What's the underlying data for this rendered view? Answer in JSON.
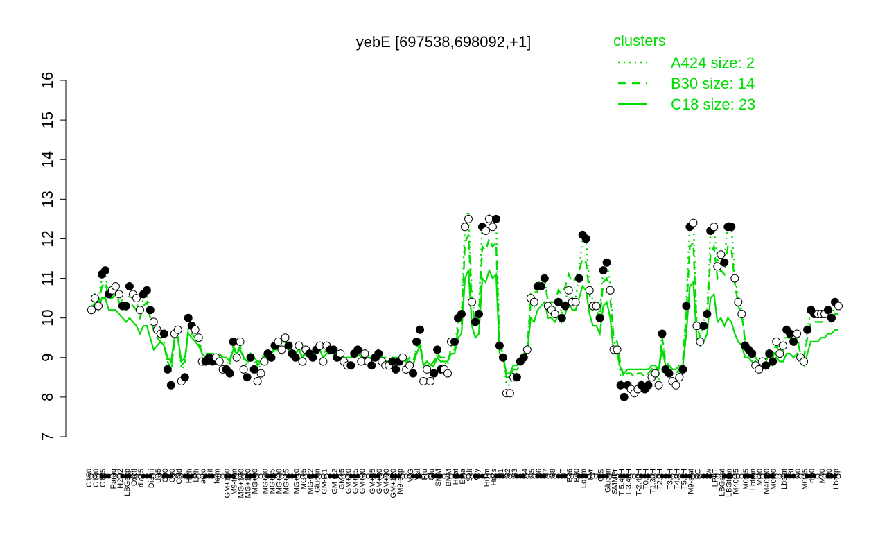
{
  "chart_data": {
    "type": "line",
    "title": "yebE [697538,698092,+1]",
    "xlabel": "",
    "ylabel": "",
    "ylim": [
      7,
      16
    ],
    "yticks": [
      7,
      8,
      9,
      10,
      11,
      12,
      13,
      14,
      15,
      16
    ],
    "grid": false,
    "legend": {
      "title": "clusters",
      "placement": "top-right",
      "color": "#00dd00",
      "entries": [
        {
          "label": "A424 size: 2",
          "style": "dotted"
        },
        {
          "label": "B30 size: 14",
          "style": "dashed"
        },
        {
          "label": "C18 size: 23",
          "style": "solid"
        }
      ]
    },
    "colors": {
      "lines": "#00dd00",
      "points": "#000000",
      "axes": "#000000"
    },
    "x_tick_labels": [
      "G150",
      "G180",
      "G135",
      "Paraq",
      "H2O2",
      "LBGexp",
      "Oxctl",
      "dia15",
      "Diami",
      "dia5",
      "C90",
      "C30",
      "Cold",
      "HPh",
      "LPh",
      "aero",
      "nit",
      "ferm",
      "GM+150",
      "M9-tran",
      "MG+150",
      "MG+120",
      "MG+90",
      "MG+60",
      "MG+45",
      "MG+30",
      "MG+15",
      "MG+10",
      "MG+5",
      "MG-0.2",
      "Glucon",
      "GM-0.1",
      "GM-0.2",
      "GM+5",
      "GM+10",
      "GM+15",
      "GM+30",
      "GM+45",
      "GM+60",
      "GM+90",
      "GM+120",
      "M9-exp",
      "M/G",
      "Mal",
      "Fru",
      "Glu",
      "SMM",
      "BMM",
      "Heat",
      "Etha",
      "Salt",
      "Gly",
      "HiTm",
      "HiOs",
      "S1",
      "S2",
      "S3",
      "S4",
      "S5",
      "S6",
      "S7",
      "S8",
      "BT",
      "B36",
      "B60",
      "LoTm",
      "Pyr",
      "G/S",
      "Glucon",
      "SMMPr",
      "T-5.40H",
      "T-3.40H",
      "T-2.40H",
      "T0.0H",
      "T1.30H",
      "T2.0H",
      "T3.0H",
      "T4.0H",
      "T5.0H",
      "M9-stat",
      "BC",
      "Sw",
      "LPhT",
      "LBGstat",
      "LBGtran",
      "M40t45",
      "M0t45",
      "Lbtran",
      "M0t0",
      "M40t90",
      "M0t90",
      "Lbstat",
      "BI",
      "S0",
      "M0t45",
      "dia0",
      "M40",
      "M0",
      "Lbexp"
    ],
    "series": [
      {
        "marker": "point",
        "values": [
          10.2,
          10.5,
          10.3,
          11.1,
          11.2,
          10.6,
          10.7,
          10.8,
          10.6,
          10.3,
          10.3,
          10.8,
          10.6,
          10.5,
          10.2,
          10.6,
          10.7,
          10.2,
          9.9,
          9.7,
          9.6,
          9.6,
          8.7,
          8.3,
          9.6,
          9.7,
          8.4,
          8.5,
          10.0,
          9.8,
          9.7,
          9.5,
          8.9,
          8.9,
          9.0,
          8.9,
          9.0,
          8.9,
          8.7,
          8.7,
          8.6,
          9.4,
          9.0,
          9.4,
          8.7,
          8.5,
          9.0,
          8.7,
          8.4,
          8.6,
          8.9,
          9.1,
          9.0,
          9.3,
          9.4,
          9.2,
          9.5,
          9.3,
          9.1,
          9.0,
          9.3,
          8.9,
          9.2,
          9.1,
          9.0,
          9.2,
          9.3,
          8.9,
          9.3,
          9.2,
          9.2,
          9.0,
          9.1,
          8.9,
          8.8,
          8.8,
          9.1,
          9.2,
          8.9,
          9.1,
          8.9,
          8.8,
          9.0,
          9.1,
          8.9,
          8.8,
          8.8,
          8.9,
          8.7,
          8.9,
          9.0,
          8.7,
          8.8,
          8.6,
          9.4,
          9.7,
          8.4,
          8.7,
          8.4,
          8.6,
          9.2,
          8.7,
          8.7,
          8.6,
          9.4,
          9.4,
          10.0,
          10.1,
          12.3,
          12.5,
          10.4,
          9.9,
          10.1,
          12.3,
          12.2,
          12.5,
          12.3,
          12.5,
          9.3,
          9.0,
          8.1,
          8.1,
          8.5,
          8.5,
          8.9,
          9.0,
          9.2,
          10.5,
          10.4,
          10.8,
          10.8,
          11.0,
          10.3,
          10.2,
          10.1,
          10.4,
          10.0,
          10.3,
          10.7,
          10.4,
          10.4,
          11.0,
          12.1,
          12.0,
          10.7,
          10.3,
          10.3,
          10.0,
          11.2,
          11.4,
          10.7,
          9.2,
          9.2,
          8.3,
          8.0,
          8.3,
          8.2,
          8.1,
          8.2,
          8.3,
          8.2,
          8.3,
          8.5,
          8.6,
          8.3,
          9.6,
          8.7,
          8.6,
          8.4,
          8.3,
          8.5,
          8.7,
          10.3,
          12.3,
          12.4,
          9.8,
          9.4,
          9.8,
          10.1,
          12.2,
          12.3,
          11.3,
          11.6,
          11.4,
          12.3,
          12.3,
          11.0,
          10.4,
          10.1,
          9.3,
          9.2,
          9.1,
          8.8,
          8.7,
          8.9,
          8.8,
          9.1,
          8.9,
          9.4,
          9.1,
          9.3,
          9.7,
          9.6,
          9.4,
          9.6,
          9.0,
          8.9,
          9.7,
          10.2,
          10.1,
          10.1,
          10.1,
          10.1,
          10.2,
          10.0,
          10.4,
          10.3
        ]
      },
      {
        "name": "A424",
        "style": "dotted",
        "values": [
          10.3,
          10.6,
          10.5,
          11.0,
          11.1,
          10.6,
          10.7,
          10.7,
          10.6,
          10.4,
          10.3,
          10.6,
          10.5,
          10.4,
          10.1,
          10.5,
          10.6,
          10.2,
          9.8,
          9.6,
          9.5,
          9.4,
          8.9,
          8.6,
          9.5,
          9.6,
          8.7,
          8.8,
          9.8,
          9.7,
          9.6,
          9.5,
          9.1,
          9.0,
          9.1,
          9.0,
          9.1,
          9.0,
          8.9,
          8.9,
          8.8,
          9.3,
          9.1,
          9.3,
          8.9,
          8.8,
          9.0,
          8.9,
          8.7,
          8.8,
          9.0,
          9.1,
          9.1,
          9.3,
          9.3,
          9.2,
          9.4,
          9.3,
          9.2,
          9.1,
          9.2,
          9.0,
          9.2,
          9.1,
          9.1,
          9.2,
          9.2,
          9.0,
          9.2,
          9.2,
          9.2,
          9.1,
          9.1,
          9.0,
          9.0,
          9.0,
          9.1,
          9.1,
          9.0,
          9.1,
          9.0,
          9.0,
          9.0,
          9.1,
          9.0,
          8.9,
          8.9,
          9.0,
          8.9,
          9.0,
          9.0,
          8.9,
          8.9,
          8.8,
          9.3,
          9.5,
          8.7,
          8.8,
          8.7,
          8.8,
          9.1,
          8.9,
          8.9,
          8.8,
          9.3,
          9.3,
          9.9,
          10.0,
          12.5,
          12.7,
          10.6,
          10.1,
          10.2,
          12.4,
          12.3,
          12.6,
          12.4,
          12.5,
          9.4,
          9.1,
          8.3,
          8.3,
          8.6,
          8.6,
          9.0,
          9.1,
          9.2,
          10.6,
          10.5,
          10.9,
          10.9,
          11.0,
          10.4,
          10.3,
          10.2,
          10.5,
          10.1,
          10.4,
          10.8,
          10.5,
          10.5,
          11.1,
          12.1,
          12.0,
          10.8,
          10.4,
          10.4,
          10.1,
          11.3,
          11.5,
          10.8,
          9.4,
          9.3,
          8.5,
          8.2,
          8.4,
          8.3,
          8.2,
          8.3,
          8.4,
          8.3,
          8.4,
          8.6,
          8.7,
          8.4,
          9.6,
          8.8,
          8.7,
          8.5,
          8.4,
          8.6,
          8.8,
          10.4,
          12.4,
          12.5,
          9.9,
          9.5,
          9.9,
          10.2,
          12.2,
          12.3,
          11.4,
          11.7,
          11.5,
          12.4,
          12.4,
          11.1,
          10.5,
          10.2,
          9.4,
          9.3,
          9.2,
          8.9,
          8.8,
          9.0,
          8.9,
          9.1,
          9.0,
          9.4,
          9.2,
          9.3,
          9.7,
          9.6,
          9.5,
          9.6,
          9.1,
          9.0,
          9.7,
          10.2,
          10.1,
          10.1,
          10.1,
          10.1,
          10.2,
          10.1,
          10.3,
          10.3
        ]
      },
      {
        "name": "B30",
        "style": "dashed",
        "values": [
          10.2,
          10.4,
          10.3,
          10.8,
          10.9,
          10.5,
          10.5,
          10.6,
          10.4,
          10.2,
          10.2,
          10.4,
          10.3,
          10.2,
          10.0,
          10.3,
          10.4,
          10.0,
          9.7,
          9.5,
          9.4,
          9.3,
          8.9,
          8.7,
          9.4,
          9.5,
          8.8,
          8.9,
          9.7,
          9.6,
          9.5,
          9.4,
          9.1,
          9.1,
          9.1,
          9.1,
          9.1,
          9.1,
          9.0,
          9.0,
          8.9,
          9.3,
          9.1,
          9.3,
          9.0,
          8.9,
          9.1,
          9.0,
          8.8,
          8.9,
          9.1,
          9.2,
          9.1,
          9.3,
          9.3,
          9.2,
          9.4,
          9.3,
          9.2,
          9.1,
          9.2,
          9.1,
          9.2,
          9.2,
          9.1,
          9.2,
          9.2,
          9.1,
          9.2,
          9.2,
          9.2,
          9.1,
          9.1,
          9.1,
          9.0,
          9.0,
          9.1,
          9.1,
          9.0,
          9.1,
          9.0,
          9.0,
          9.0,
          9.1,
          9.0,
          9.0,
          9.0,
          9.0,
          9.0,
          9.0,
          9.0,
          8.9,
          9.0,
          8.9,
          9.2,
          9.4,
          8.8,
          8.9,
          8.8,
          8.9,
          9.1,
          9.0,
          9.0,
          8.9,
          9.2,
          9.2,
          9.7,
          9.8,
          11.9,
          12.1,
          10.3,
          9.9,
          10.0,
          11.8,
          11.7,
          12.0,
          11.8,
          11.9,
          9.3,
          9.1,
          8.5,
          8.5,
          8.7,
          8.7,
          9.0,
          9.1,
          9.2,
          10.4,
          10.3,
          10.7,
          10.8,
          11.0,
          10.4,
          10.4,
          10.4,
          10.7,
          10.6,
          10.8,
          11.1,
          10.9,
          11.0,
          11.2,
          11.5,
          11.4,
          10.6,
          10.2,
          10.2,
          10.0,
          10.9,
          11.0,
          10.5,
          9.5,
          9.4,
          8.8,
          8.5,
          8.6,
          8.6,
          8.5,
          8.6,
          8.6,
          8.5,
          8.6,
          8.7,
          8.8,
          8.6,
          9.5,
          8.9,
          8.8,
          8.7,
          8.6,
          8.7,
          8.9,
          10.1,
          11.8,
          11.9,
          9.8,
          9.5,
          9.8,
          10.0,
          11.6,
          11.8,
          11.0,
          11.2,
          11.1,
          11.8,
          11.8,
          10.9,
          10.3,
          10.1,
          9.4,
          9.3,
          9.2,
          9.0,
          8.9,
          9.0,
          8.9,
          9.1,
          9.0,
          9.3,
          9.1,
          9.2,
          9.5,
          9.5,
          9.3,
          9.5,
          9.1,
          9.0,
          9.5,
          9.9,
          9.9,
          9.9,
          9.9,
          9.9,
          10.0,
          9.9,
          10.1,
          10.1
        ]
      },
      {
        "name": "C18",
        "style": "solid",
        "values": [
          10.1,
          10.3,
          10.2,
          10.5,
          10.5,
          10.2,
          10.2,
          10.2,
          10.1,
          10.0,
          9.9,
          10.0,
          9.9,
          9.8,
          9.6,
          9.8,
          9.8,
          9.5,
          9.2,
          9.3,
          9.4,
          9.3,
          9.0,
          8.9,
          9.5,
          9.5,
          8.9,
          9.0,
          9.6,
          9.5,
          9.4,
          9.3,
          9.1,
          9.0,
          9.1,
          9.0,
          9.1,
          9.0,
          9.0,
          9.0,
          8.9,
          9.2,
          9.1,
          9.2,
          9.0,
          8.9,
          9.1,
          9.0,
          8.9,
          8.9,
          9.0,
          9.1,
          9.1,
          9.2,
          9.2,
          9.1,
          9.3,
          9.2,
          9.1,
          9.1,
          9.2,
          9.0,
          9.1,
          9.1,
          9.1,
          9.1,
          9.2,
          9.0,
          9.1,
          9.1,
          9.1,
          9.0,
          9.1,
          9.0,
          9.0,
          9.0,
          9.0,
          9.1,
          9.0,
          9.0,
          9.0,
          8.9,
          9.0,
          9.0,
          8.9,
          8.9,
          8.9,
          8.9,
          8.9,
          8.9,
          9.0,
          8.9,
          8.9,
          8.8,
          9.1,
          9.3,
          8.8,
          8.9,
          8.8,
          8.8,
          9.0,
          8.9,
          8.9,
          8.9,
          9.1,
          9.1,
          9.5,
          9.6,
          11.0,
          11.2,
          9.8,
          9.5,
          9.6,
          11.0,
          10.9,
          11.2,
          11.0,
          11.1,
          9.1,
          9.0,
          8.6,
          8.6,
          8.8,
          8.8,
          9.0,
          9.0,
          9.1,
          10.0,
          9.9,
          10.2,
          10.3,
          10.4,
          10.0,
          10.0,
          9.9,
          10.1,
          9.9,
          10.1,
          10.4,
          10.2,
          10.2,
          10.5,
          10.8,
          10.7,
          10.1,
          9.8,
          9.8,
          9.6,
          10.3,
          10.4,
          10.0,
          9.1,
          9.1,
          8.7,
          8.6,
          8.7,
          8.7,
          8.7,
          8.7,
          8.7,
          8.7,
          8.7,
          8.8,
          8.8,
          8.7,
          9.2,
          8.8,
          8.8,
          8.7,
          8.7,
          8.8,
          8.8,
          9.6,
          10.8,
          10.9,
          9.5,
          9.3,
          9.4,
          9.6,
          10.5,
          10.6,
          9.9,
          10.0,
          9.8,
          10.0,
          9.9,
          9.6,
          9.4,
          9.3,
          9.0,
          9.0,
          8.9,
          8.8,
          8.7,
          8.8,
          8.7,
          8.8,
          8.8,
          9.0,
          8.9,
          8.9,
          9.1,
          9.1,
          9.0,
          9.1,
          8.9,
          8.8,
          9.1,
          9.4,
          9.4,
          9.4,
          9.5,
          9.5,
          9.6,
          9.6,
          9.7,
          9.7
        ]
      }
    ]
  }
}
